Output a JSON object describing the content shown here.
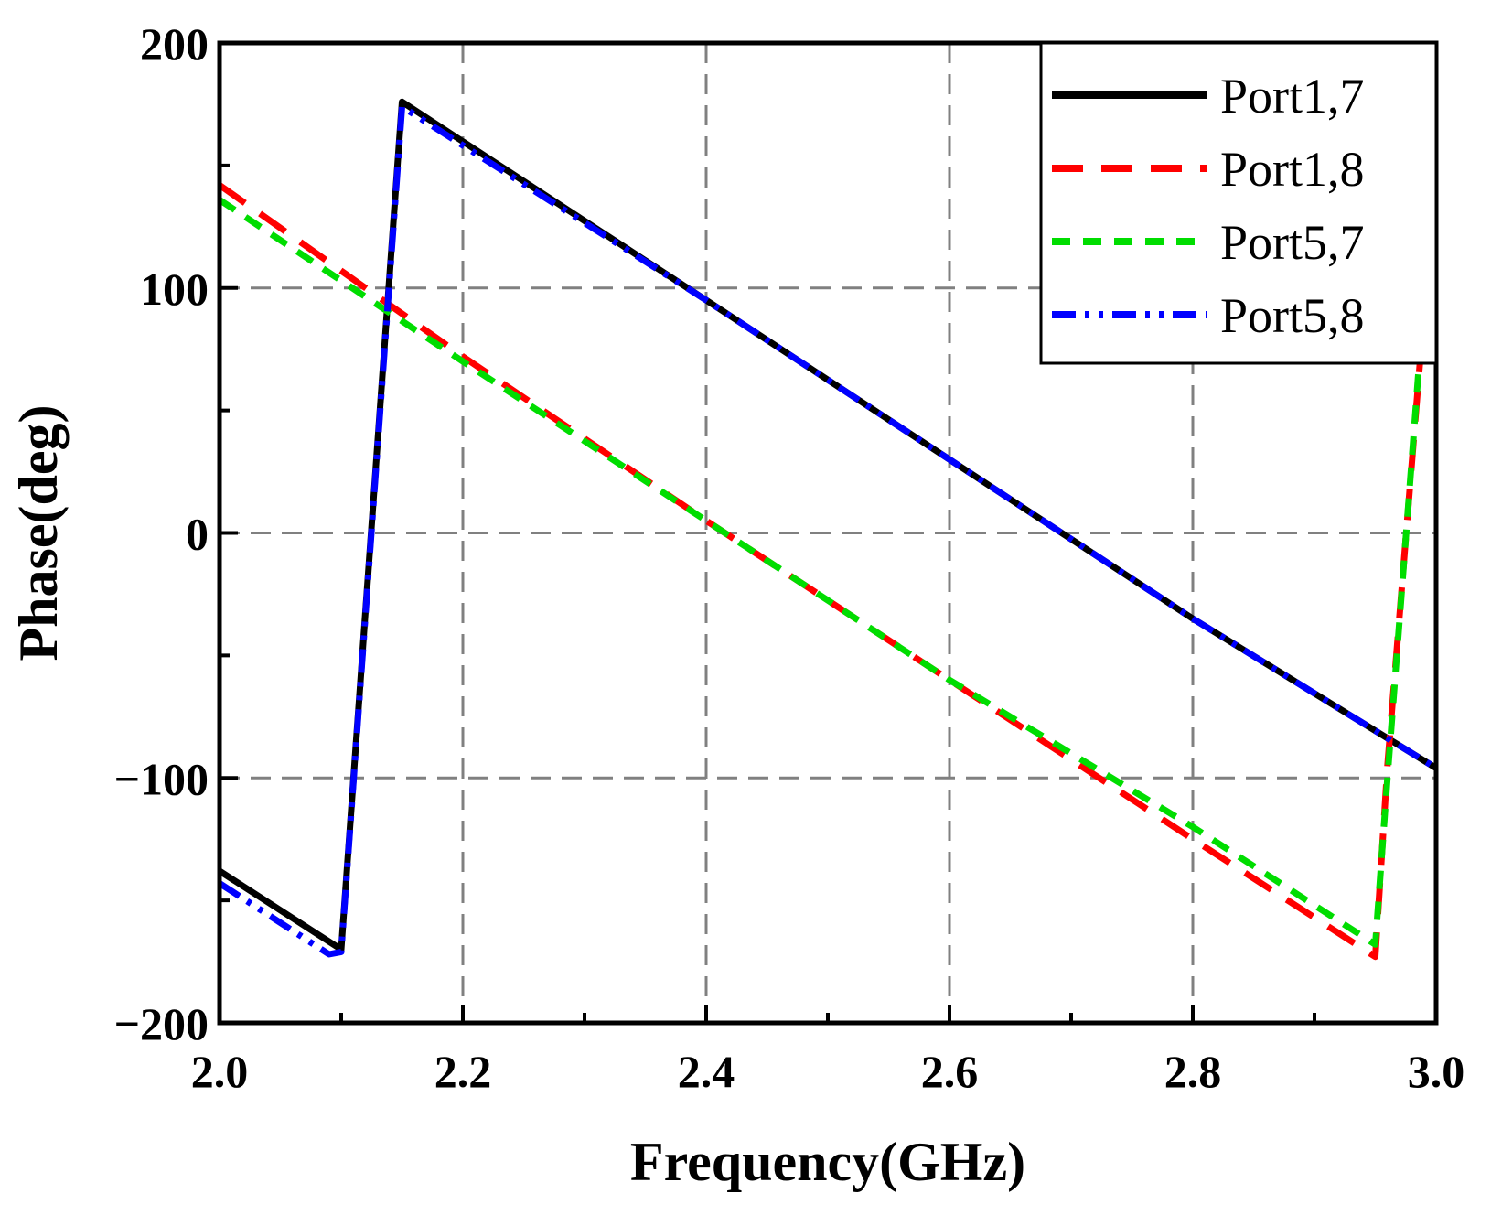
{
  "chart_data": {
    "type": "line",
    "title": "",
    "xlabel": "Frequency(GHz)",
    "ylabel": "Phase(deg)",
    "xlim": [
      2.0,
      3.0
    ],
    "ylim": [
      -200,
      200
    ],
    "x_ticks": [
      2.0,
      2.2,
      2.4,
      2.6,
      2.8,
      3.0
    ],
    "x_tick_labels": [
      "2.0",
      "2.2",
      "2.4",
      "2.6",
      "2.8",
      "3.0"
    ],
    "y_ticks": [
      -200,
      -100,
      0,
      100,
      200
    ],
    "y_tick_labels": [
      "−200",
      "−100",
      "0",
      "100",
      "200"
    ],
    "grid": true,
    "legend_position": "top-right",
    "series": [
      {
        "name": "Port1,7",
        "color": "#000000",
        "dash": "solid",
        "x": [
          2.0,
          2.1,
          2.15,
          2.4,
          2.6,
          2.8,
          3.0
        ],
        "y": [
          -138,
          -170,
          176,
          95,
          30,
          -35,
          -96
        ]
      },
      {
        "name": "Port1,8",
        "color": "#ff0000",
        "dash": "long-dash",
        "x": [
          2.0,
          2.2,
          2.4,
          2.6,
          2.8,
          2.95,
          2.96,
          2.99
        ],
        "y": [
          142,
          72,
          5,
          -60,
          -125,
          -173,
          -95,
          90
        ]
      },
      {
        "name": "Port5,7",
        "color": "#00dd00",
        "dash": "short-dash",
        "x": [
          2.0,
          2.2,
          2.4,
          2.6,
          2.8,
          2.95,
          2.96,
          2.99
        ],
        "y": [
          136,
          70,
          5,
          -60,
          -120,
          -168,
          -100,
          95
        ]
      },
      {
        "name": "Port5,8",
        "color": "#0000ff",
        "dash": "dash-dot-dot",
        "x": [
          2.0,
          2.09,
          2.1,
          2.15,
          2.4,
          2.6,
          2.8,
          3.0
        ],
        "y": [
          -143,
          -172,
          -171,
          174,
          95,
          30,
          -35,
          -96
        ]
      }
    ]
  }
}
